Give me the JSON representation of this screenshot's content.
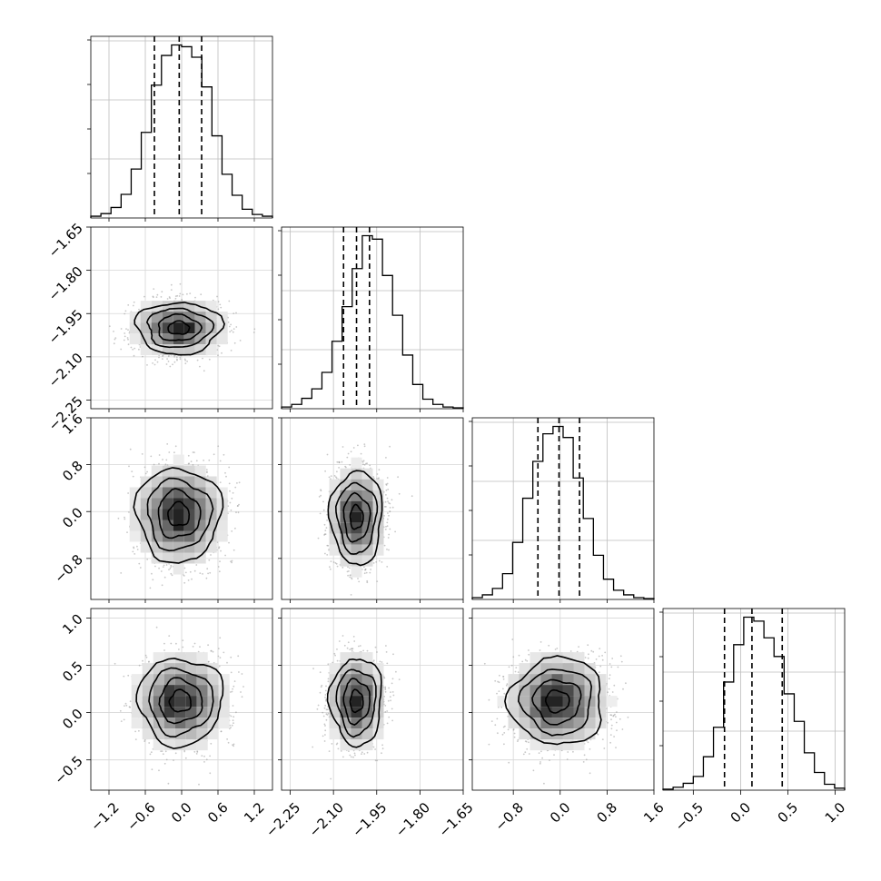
{
  "chart_data": {
    "type": "corner",
    "title": "",
    "variables": [
      {
        "range": [
          -1.5,
          1.5
        ],
        "ticks": [
          -1.2,
          -0.6,
          0.0,
          0.6,
          1.2
        ],
        "tick_labels": [
          "−1.2",
          "−0.6",
          "0.0",
          "0.6",
          "1.2"
        ],
        "quantiles": [
          -0.45,
          -0.04,
          0.33
        ],
        "hist_counts": [
          2,
          5,
          12,
          27,
          56,
          98,
          152,
          186,
          198,
          196,
          184,
          150,
          94,
          50,
          26,
          10,
          4,
          2
        ]
      },
      {
        "range": [
          -2.28,
          -1.65
        ],
        "ticks": [
          -2.25,
          -2.1,
          -1.95,
          -1.8,
          -1.65
        ],
        "tick_labels": [
          "−2.25",
          "−2.10",
          "−1.95",
          "−1.80",
          "−1.65"
        ],
        "quantiles": [
          -2.065,
          -2.02,
          -1.975
        ],
        "hist_counts": [
          2,
          5,
          12,
          23,
          42,
          78,
          118,
          162,
          200,
          196,
          154,
          108,
          62,
          28,
          11,
          5,
          2,
          1
        ]
      },
      {
        "range": [
          -1.5,
          1.6
        ],
        "ticks": [
          -0.8,
          0.0,
          0.8,
          1.6
        ],
        "tick_labels": [
          "−0.8",
          "0.0",
          "0.8",
          "1.6"
        ],
        "quantiles": [
          -0.38,
          -0.02,
          0.33
        ],
        "hist_counts": [
          2,
          5,
          12,
          28,
          62,
          110,
          150,
          180,
          188,
          176,
          132,
          88,
          48,
          22,
          10,
          5,
          2,
          1
        ]
      },
      {
        "range": [
          -0.82,
          1.1
        ],
        "ticks": [
          -0.5,
          0.0,
          0.5,
          1.0
        ],
        "tick_labels": [
          "−0.5",
          "0.0",
          "0.5",
          "1.0"
        ],
        "quantiles": [
          -0.17,
          0.12,
          0.44
        ],
        "hist_counts": [
          1,
          3,
          7,
          14,
          34,
          64,
          110,
          148,
          176,
          172,
          155,
          136,
          98,
          70,
          38,
          18,
          6,
          2
        ]
      }
    ],
    "pairs": [
      {
        "x": 0,
        "y": 1,
        "center": [
          -0.05,
          -2.0
        ],
        "spread": [
          0.35,
          0.045
        ],
        "corr": 0
      },
      {
        "x": 0,
        "y": 2,
        "center": [
          -0.05,
          -0.05
        ],
        "spread": [
          0.35,
          0.4
        ],
        "corr": 0
      },
      {
        "x": 1,
        "y": 2,
        "center": [
          -2.02,
          -0.1
        ],
        "spread": [
          0.045,
          0.4
        ],
        "corr": 0
      },
      {
        "x": 0,
        "y": 3,
        "center": [
          -0.02,
          0.12
        ],
        "spread": [
          0.35,
          0.23
        ],
        "corr": 0
      },
      {
        "x": 1,
        "y": 3,
        "center": [
          -2.02,
          0.12
        ],
        "spread": [
          0.045,
          0.23
        ],
        "corr": 0
      },
      {
        "x": 2,
        "y": 3,
        "center": [
          -0.05,
          0.12
        ],
        "spread": [
          0.4,
          0.23
        ],
        "corr": 0
      }
    ],
    "grid": true,
    "contour_levels_sigma": [
      0.5,
      1.0,
      1.5,
      2.0
    ]
  }
}
